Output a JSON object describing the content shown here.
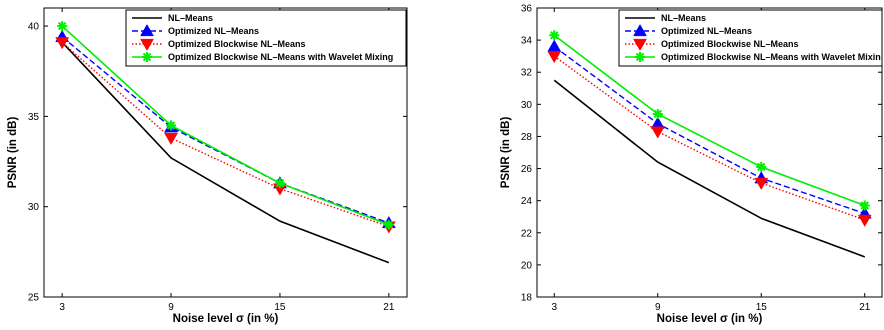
{
  "chart_data": [
    {
      "type": "line",
      "title": "",
      "xlabel": "Noise level σ (in %)",
      "ylabel": "PSNR (in dB)",
      "x": [
        3,
        9,
        15,
        21
      ],
      "xlim": [
        2,
        22
      ],
      "ylim": [
        25,
        41
      ],
      "xticks": [
        3,
        9,
        15,
        21
      ],
      "yticks": [
        25,
        30,
        35,
        40
      ],
      "legend_position": "top-right",
      "series": [
        {
          "name": "NL–Means",
          "values": [
            39.1,
            32.7,
            29.2,
            26.9
          ],
          "color": "#000000",
          "style": "solid",
          "marker": "none"
        },
        {
          "name": "Optimized NL–Means",
          "values": [
            39.4,
            34.4,
            31.3,
            29.1
          ],
          "color": "#0000ff",
          "style": "dashed",
          "marker": "triangle-up"
        },
        {
          "name": "Optimized Blockwise NL–Means",
          "values": [
            39.1,
            33.8,
            31.0,
            28.9
          ],
          "color": "#ff0000",
          "style": "dotted",
          "marker": "triangle-down"
        },
        {
          "name": "Optimized Blockwise NL–Means with Wavelet Mixing",
          "values": [
            40.0,
            34.5,
            31.3,
            29.0
          ],
          "color": "#00ee00",
          "style": "solid",
          "marker": "star"
        }
      ]
    },
    {
      "type": "line",
      "title": "",
      "xlabel": "Noise level σ (in %)",
      "ylabel": "PSNR (in dB)",
      "x": [
        3,
        9,
        15,
        21
      ],
      "xlim": [
        2,
        22
      ],
      "ylim": [
        18,
        36
      ],
      "xticks": [
        3,
        9,
        15,
        21
      ],
      "yticks": [
        18,
        20,
        22,
        24,
        26,
        28,
        30,
        32,
        34,
        36
      ],
      "legend_position": "top-right",
      "series": [
        {
          "name": "NL–Means",
          "values": [
            31.5,
            26.4,
            22.9,
            20.5
          ],
          "color": "#000000",
          "style": "solid",
          "marker": "none"
        },
        {
          "name": "Optimized NL–Means",
          "values": [
            33.6,
            28.8,
            25.4,
            23.2
          ],
          "color": "#0000ff",
          "style": "dashed",
          "marker": "triangle-up"
        },
        {
          "name": "Optimized Blockwise NL–Means",
          "values": [
            33.0,
            28.3,
            25.1,
            22.8
          ],
          "color": "#ff0000",
          "style": "dotted",
          "marker": "triangle-down"
        },
        {
          "name": "Optimized Blockwise NL–Means with Wavelet Mixin",
          "values": [
            34.3,
            29.4,
            26.1,
            23.7
          ],
          "color": "#00ee00",
          "style": "solid",
          "marker": "star"
        }
      ]
    }
  ]
}
